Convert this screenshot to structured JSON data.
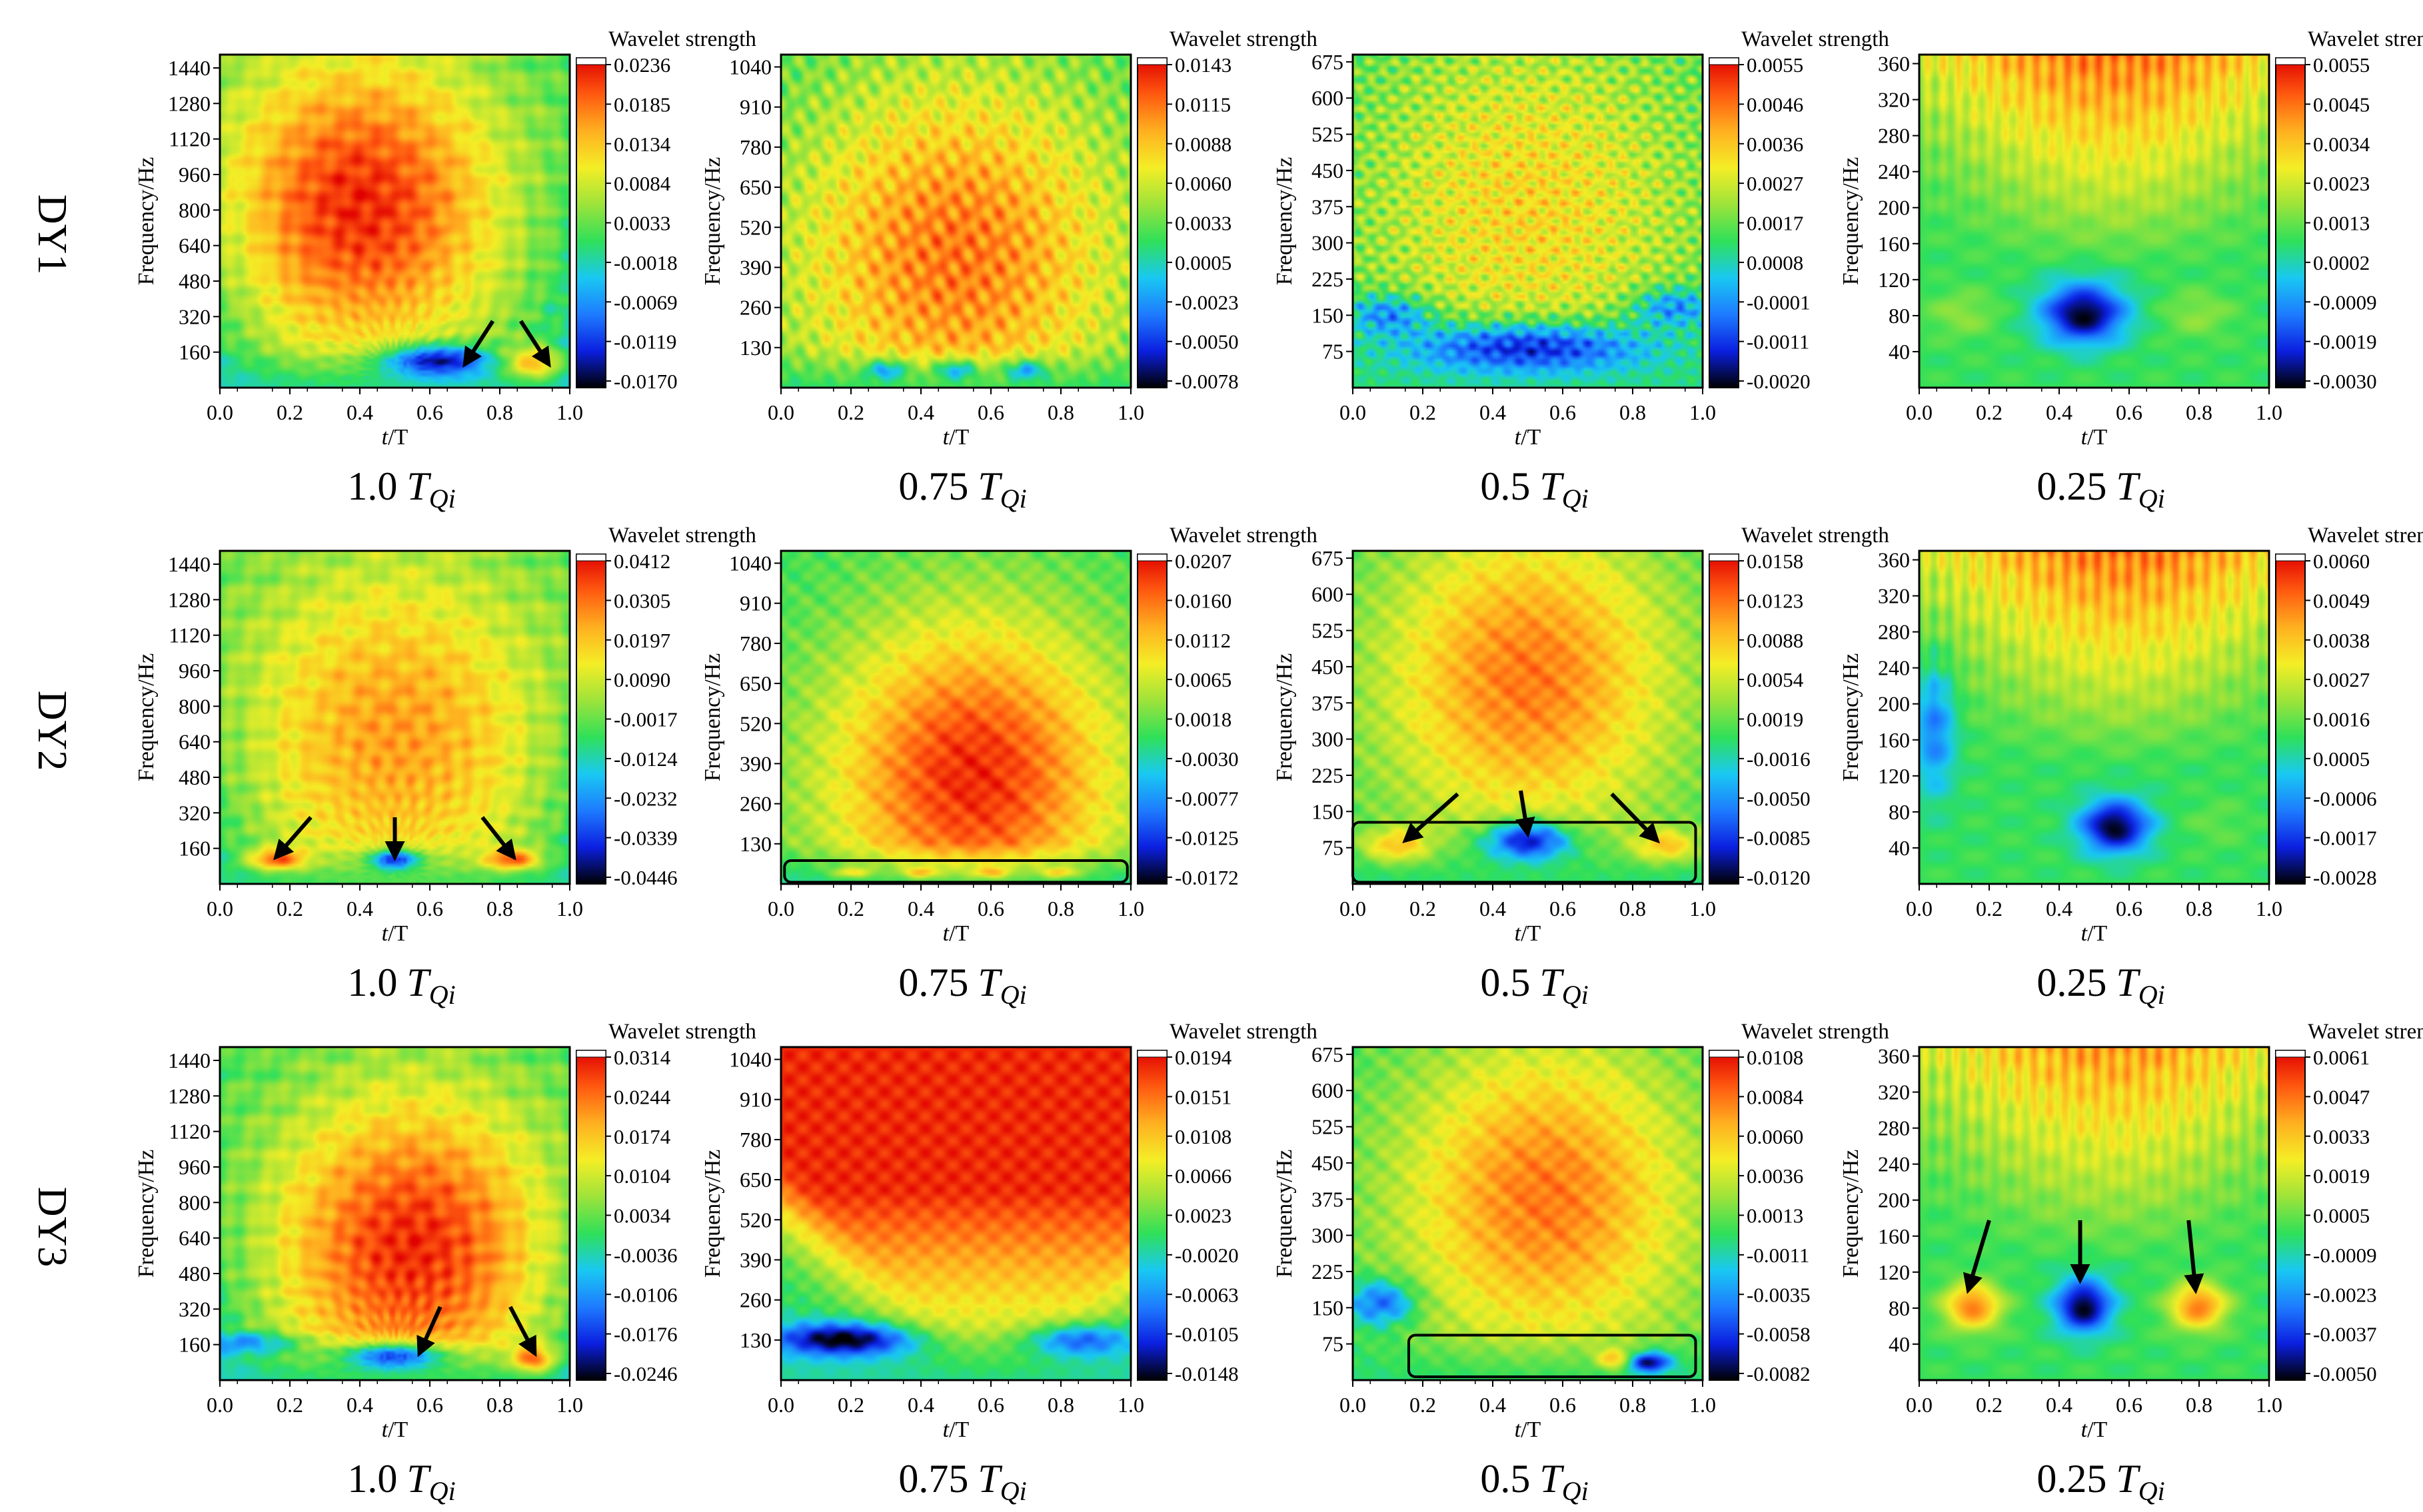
{
  "figure": {
    "row_labels": [
      "DY1",
      "DY2",
      "DY3"
    ],
    "column_labels": [
      "1.0",
      "0.75",
      "0.5",
      "0.25"
    ],
    "column_label_suffix": "T",
    "column_label_subscript": "Qi",
    "colorbar_title": "Wavelet strength",
    "xlabel_italic": "t",
    "xlabel_rest": "/T",
    "ylabel": "Frequency/Hz",
    "colors": {
      "colormap": [
        "#000000",
        "#0b1fe0",
        "#1e7bff",
        "#19c8f2",
        "#2fe05a",
        "#9ee33a",
        "#f4ee26",
        "#ffb020",
        "#ff5a10",
        "#e00000",
        "#ffffff"
      ]
    }
  },
  "chart_data": [
    {
      "row": "DY1",
      "col": "1.0",
      "type": "heatmap",
      "title": "1.0 TQi",
      "xlabel": "t/T",
      "ylabel": "Frequency/Hz",
      "colorbar_label": "Wavelet strength",
      "x_ticks": [
        "0.0",
        "0.2",
        "0.4",
        "0.6",
        "0.8",
        "1.0"
      ],
      "y_ticks": [
        "160",
        "320",
        "480",
        "640",
        "800",
        "960",
        "1120",
        "1280",
        "1440"
      ],
      "ylim": [
        0,
        1500
      ],
      "colorbar_ticks": [
        "0.0236",
        "0.0185",
        "0.0134",
        "0.0084",
        "0.0033",
        "-0.0018",
        "-0.0069",
        "-0.0119",
        "-0.0170"
      ],
      "pattern": {
        "family": "fan",
        "hot": [
          0.4,
          0.55,
          0.3,
          0.95
        ],
        "low": [
          [
            0.62,
            0.08,
            0.15,
            0.05,
            -1
          ],
          [
            0.9,
            0.07,
            0.08,
            0.05,
            0.8
          ]
        ],
        "lowLevel": 0.35,
        "lowBand": 0.13
      },
      "arrows": [
        {
          "from": [
            0.78,
            0.2
          ],
          "to": [
            0.7,
            0.07
          ]
        },
        {
          "from": [
            0.86,
            0.2
          ],
          "to": [
            0.94,
            0.07
          ]
        }
      ],
      "boxes": []
    },
    {
      "row": "DY1",
      "col": "0.75",
      "type": "heatmap",
      "title": "0.75 TQi",
      "xlabel": "t/T",
      "ylabel": "Frequency/Hz",
      "colorbar_label": "Wavelet strength",
      "x_ticks": [
        "0.0",
        "0.2",
        "0.4",
        "0.6",
        "0.8",
        "1.0"
      ],
      "y_ticks": [
        "130",
        "260",
        "390",
        "520",
        "650",
        "780",
        "910",
        "1040"
      ],
      "ylim": [
        0,
        1080
      ],
      "colorbar_ticks": [
        "0.0143",
        "0.0115",
        "0.0088",
        "0.0060",
        "0.0033",
        "0.0005",
        "-0.0023",
        "-0.0050",
        "-0.0078"
      ],
      "pattern": {
        "family": "cells",
        "hot": [
          0.5,
          0.4,
          0.35,
          0.85
        ],
        "low": [
          [
            0.3,
            0.05,
            0.06,
            0.03,
            -0.6
          ],
          [
            0.5,
            0.05,
            0.06,
            0.03,
            -0.6
          ],
          [
            0.7,
            0.05,
            0.06,
            0.03,
            -0.6
          ]
        ],
        "lowLevel": 0.38,
        "lowBand": 0.12
      },
      "arrows": [],
      "boxes": []
    },
    {
      "row": "DY1",
      "col": "0.5",
      "type": "heatmap",
      "title": "0.5 TQi",
      "xlabel": "t/T",
      "ylabel": "Frequency/Hz",
      "colorbar_label": "Wavelet strength",
      "x_ticks": [
        "0.0",
        "0.2",
        "0.4",
        "0.6",
        "0.8",
        "1.0"
      ],
      "y_ticks": [
        "75",
        "150",
        "225",
        "300",
        "375",
        "450",
        "525",
        "600",
        "675"
      ],
      "ylim": [
        0,
        690
      ],
      "colorbar_ticks": [
        "0.0055",
        "0.0046",
        "0.0036",
        "0.0027",
        "0.0017",
        "0.0008",
        "-0.0001",
        "-0.0011",
        "-0.0020"
      ],
      "pattern": {
        "family": "noisy",
        "hot": [
          0.5,
          0.55,
          0.35,
          0.7
        ],
        "low": [
          [
            0.5,
            0.12,
            0.35,
            0.08,
            -0.9
          ],
          [
            0.1,
            0.22,
            0.12,
            0.06,
            -0.6
          ],
          [
            0.92,
            0.24,
            0.12,
            0.06,
            -0.6
          ]
        ],
        "lowLevel": 0.4,
        "lowBand": 0.2
      },
      "arrows": [],
      "boxes": []
    },
    {
      "row": "DY1",
      "col": "0.25",
      "type": "heatmap",
      "title": "0.25 TQi",
      "xlabel": "t/T",
      "ylabel": "Frequency/Hz",
      "colorbar_label": "Wavelet strength",
      "x_ticks": [
        "0.0",
        "0.2",
        "0.4",
        "0.6",
        "0.8",
        "1.0"
      ],
      "y_ticks": [
        "40",
        "80",
        "120",
        "160",
        "200",
        "240",
        "280",
        "320",
        "360"
      ],
      "ylim": [
        0,
        370
      ],
      "colorbar_ticks": [
        "0.0055",
        "0.0045",
        "0.0034",
        "0.0023",
        "0.0013",
        "0.0002",
        "-0.0009",
        "-0.0019",
        "-0.0030"
      ],
      "pattern": {
        "family": "top",
        "hot": [
          0.55,
          0.72,
          0.3,
          0.5
        ],
        "low": [
          [
            0.47,
            0.22,
            0.12,
            0.09,
            -1
          ],
          [
            0.12,
            0.22,
            0.1,
            0.07,
            0.2
          ],
          [
            0.8,
            0.22,
            0.1,
            0.07,
            0.2
          ]
        ],
        "lowLevel": 0.5,
        "lowBand": 0.0
      },
      "arrows": [],
      "boxes": []
    },
    {
      "row": "DY2",
      "col": "1.0",
      "type": "heatmap",
      "title": "1.0 TQi",
      "xlabel": "t/T",
      "ylabel": "Frequency/Hz",
      "colorbar_label": "Wavelet strength",
      "x_ticks": [
        "0.0",
        "0.2",
        "0.4",
        "0.6",
        "0.8",
        "1.0"
      ],
      "y_ticks": [
        "160",
        "320",
        "480",
        "640",
        "800",
        "960",
        "1120",
        "1280",
        "1440"
      ],
      "ylim": [
        0,
        1500
      ],
      "colorbar_ticks": [
        "0.0412",
        "0.0305",
        "0.0197",
        "0.0090",
        "-0.0017",
        "-0.0124",
        "-0.0232",
        "-0.0339",
        "-0.0446"
      ],
      "pattern": {
        "family": "fan",
        "hot": [
          0.5,
          0.45,
          0.35,
          0.8
        ],
        "low": [
          [
            0.16,
            0.07,
            0.08,
            0.03,
            0.9
          ],
          [
            0.5,
            0.07,
            0.07,
            0.03,
            -1
          ],
          [
            0.84,
            0.07,
            0.08,
            0.03,
            0.9
          ]
        ],
        "lowLevel": 0.4,
        "lowBand": 0.13
      },
      "arrows": [
        {
          "from": [
            0.26,
            0.2
          ],
          "to": [
            0.16,
            0.08
          ]
        },
        {
          "from": [
            0.5,
            0.2
          ],
          "to": [
            0.5,
            0.08
          ]
        },
        {
          "from": [
            0.75,
            0.2
          ],
          "to": [
            0.84,
            0.08
          ]
        }
      ],
      "boxes": []
    },
    {
      "row": "DY2",
      "col": "0.75",
      "type": "heatmap",
      "title": "0.75 TQi",
      "xlabel": "t/T",
      "ylabel": "Frequency/Hz",
      "colorbar_label": "Wavelet strength",
      "x_ticks": [
        "0.0",
        "0.2",
        "0.4",
        "0.6",
        "0.8",
        "1.0"
      ],
      "y_ticks": [
        "130",
        "260",
        "390",
        "520",
        "650",
        "780",
        "910",
        "1040"
      ],
      "ylim": [
        0,
        1080
      ],
      "colorbar_ticks": [
        "0.0207",
        "0.0160",
        "0.0112",
        "0.0065",
        "0.0018",
        "-0.0030",
        "-0.0077",
        "-0.0125",
        "-0.0172"
      ],
      "pattern": {
        "family": "bowl",
        "hot": [
          0.55,
          0.32,
          0.3,
          0.95
        ],
        "low": [
          [
            0.2,
            0.03,
            0.05,
            0.015,
            0.5
          ],
          [
            0.4,
            0.03,
            0.05,
            0.015,
            0.5
          ],
          [
            0.6,
            0.03,
            0.05,
            0.015,
            0.5
          ],
          [
            0.8,
            0.03,
            0.05,
            0.015,
            0.5
          ]
        ],
        "lowLevel": 0.35,
        "lowBand": 0.12
      },
      "arrows": [],
      "boxes": [
        {
          "x0": 0.01,
          "y0": 0.005,
          "x1": 0.99,
          "y1": 0.07
        }
      ]
    },
    {
      "row": "DY2",
      "col": "0.5",
      "type": "heatmap",
      "title": "0.5 TQi",
      "xlabel": "t/T",
      "ylabel": "Frequency/Hz",
      "colorbar_label": "Wavelet strength",
      "x_ticks": [
        "0.0",
        "0.2",
        "0.4",
        "0.6",
        "0.8",
        "1.0"
      ],
      "y_ticks": [
        "75",
        "150",
        "225",
        "300",
        "375",
        "450",
        "525",
        "600",
        "675"
      ],
      "ylim": [
        0,
        690
      ],
      "colorbar_ticks": [
        "0.0158",
        "0.0123",
        "0.0088",
        "0.0054",
        "0.0019",
        "-0.0016",
        "-0.0050",
        "-0.0085",
        "-0.0120"
      ],
      "pattern": {
        "family": "bowl",
        "hot": [
          0.5,
          0.62,
          0.3,
          0.85
        ],
        "low": [
          [
            0.5,
            0.13,
            0.12,
            0.06,
            -1
          ],
          [
            0.12,
            0.11,
            0.1,
            0.05,
            0.6
          ],
          [
            0.9,
            0.11,
            0.1,
            0.05,
            0.6
          ]
        ],
        "lowLevel": 0.4,
        "lowBand": 0.18
      },
      "arrows": [
        {
          "from": [
            0.3,
            0.27
          ],
          "to": [
            0.15,
            0.13
          ]
        },
        {
          "from": [
            0.48,
            0.28
          ],
          "to": [
            0.5,
            0.15
          ]
        },
        {
          "from": [
            0.74,
            0.27
          ],
          "to": [
            0.87,
            0.13
          ]
        }
      ],
      "boxes": [
        {
          "x0": 0.0,
          "y0": 0.005,
          "x1": 0.98,
          "y1": 0.185
        }
      ]
    },
    {
      "row": "DY2",
      "col": "0.25",
      "type": "heatmap",
      "title": "0.25 TQi",
      "xlabel": "t/T",
      "ylabel": "Frequency/Hz",
      "colorbar_label": "Wavelet strength",
      "x_ticks": [
        "0.0",
        "0.2",
        "0.4",
        "0.6",
        "0.8",
        "1.0"
      ],
      "y_ticks": [
        "40",
        "80",
        "120",
        "160",
        "200",
        "240",
        "280",
        "320",
        "360"
      ],
      "ylim": [
        0,
        370
      ],
      "colorbar_ticks": [
        "0.0060",
        "0.0049",
        "0.0038",
        "0.0027",
        "0.0016",
        "0.0005",
        "-0.0006",
        "-0.0017",
        "-0.0028"
      ],
      "pattern": {
        "family": "top",
        "hot": [
          0.58,
          0.72,
          0.3,
          0.5
        ],
        "low": [
          [
            0.56,
            0.17,
            0.1,
            0.08,
            -1
          ],
          [
            0.04,
            0.47,
            0.06,
            0.2,
            -0.5
          ],
          [
            0.85,
            0.18,
            0.09,
            0.07,
            0.1
          ]
        ],
        "lowLevel": 0.5,
        "lowBand": 0.0
      },
      "arrows": [],
      "boxes": []
    },
    {
      "row": "DY3",
      "col": "1.0",
      "type": "heatmap",
      "title": "1.0 TQi",
      "xlabel": "t/T",
      "ylabel": "Frequency/Hz",
      "colorbar_label": "Wavelet strength",
      "x_ticks": [
        "0.0",
        "0.2",
        "0.4",
        "0.6",
        "0.8",
        "1.0"
      ],
      "y_ticks": [
        "160",
        "320",
        "480",
        "640",
        "800",
        "960",
        "1120",
        "1280",
        "1440"
      ],
      "ylim": [
        0,
        1500
      ],
      "colorbar_ticks": [
        "0.0314",
        "0.0244",
        "0.0174",
        "0.0104",
        "0.0034",
        "-0.0036",
        "-0.0106",
        "-0.0176",
        "-0.0246"
      ],
      "pattern": {
        "family": "fan",
        "hot": [
          0.55,
          0.4,
          0.3,
          0.95
        ],
        "low": [
          [
            0.5,
            0.07,
            0.14,
            0.04,
            -1
          ],
          [
            0.9,
            0.06,
            0.06,
            0.04,
            0.9
          ],
          [
            0.1,
            0.11,
            0.15,
            0.03,
            -0.5
          ]
        ],
        "lowLevel": 0.35,
        "lowBand": 0.13
      },
      "arrows": [
        {
          "from": [
            0.63,
            0.22
          ],
          "to": [
            0.57,
            0.08
          ]
        },
        {
          "from": [
            0.83,
            0.22
          ],
          "to": [
            0.9,
            0.08
          ]
        }
      ],
      "boxes": []
    },
    {
      "row": "DY3",
      "col": "0.75",
      "type": "heatmap",
      "title": "0.75 TQi",
      "xlabel": "t/T",
      "ylabel": "Frequency/Hz",
      "colorbar_label": "Wavelet strength",
      "x_ticks": [
        "0.0",
        "0.2",
        "0.4",
        "0.6",
        "0.8",
        "1.0"
      ],
      "y_ticks": [
        "130",
        "260",
        "390",
        "520",
        "650",
        "780",
        "910",
        "1040"
      ],
      "ylim": [
        0,
        1080
      ],
      "colorbar_ticks": [
        "0.0194",
        "0.0151",
        "0.0108",
        "0.0066",
        "0.0023",
        "-0.0020",
        "-0.0063",
        "-0.0105",
        "-0.0148"
      ],
      "pattern": {
        "family": "vshape",
        "hot": [
          0.62,
          0.3,
          0.25,
          0.95
        ],
        "low": [
          [
            0.18,
            0.12,
            0.2,
            0.05,
            -1
          ],
          [
            0.85,
            0.12,
            0.15,
            0.05,
            -0.7
          ]
        ],
        "lowLevel": 0.38,
        "lowBand": 0.15
      },
      "arrows": [],
      "boxes": []
    },
    {
      "row": "DY3",
      "col": "0.5",
      "type": "heatmap",
      "title": "0.5 TQi",
      "xlabel": "t/T",
      "ylabel": "Frequency/Hz",
      "colorbar_label": "Wavelet strength",
      "x_ticks": [
        "0.0",
        "0.2",
        "0.4",
        "0.6",
        "0.8",
        "1.0"
      ],
      "y_ticks": [
        "75",
        "150",
        "225",
        "300",
        "375",
        "450",
        "525",
        "600",
        "675"
      ],
      "ylim": [
        0,
        690
      ],
      "colorbar_ticks": [
        "0.0108",
        "0.0084",
        "0.0060",
        "0.0036",
        "0.0013",
        "-0.0011",
        "-0.0035",
        "-0.0058",
        "-0.0082"
      ],
      "pattern": {
        "family": "bowl",
        "hot": [
          0.55,
          0.55,
          0.3,
          0.85
        ],
        "low": [
          [
            0.08,
            0.23,
            0.1,
            0.07,
            -0.7
          ],
          [
            0.85,
            0.05,
            0.06,
            0.03,
            -1
          ],
          [
            0.75,
            0.06,
            0.05,
            0.03,
            0.6
          ]
        ],
        "lowLevel": 0.4,
        "lowBand": 0.15
      },
      "arrows": [],
      "boxes": [
        {
          "x0": 0.16,
          "y0": 0.01,
          "x1": 0.98,
          "y1": 0.135
        }
      ]
    },
    {
      "row": "DY3",
      "col": "0.25",
      "type": "heatmap",
      "title": "0.25 TQi",
      "xlabel": "t/T",
      "ylabel": "Frequency/Hz",
      "colorbar_label": "Wavelet strength",
      "x_ticks": [
        "0.0",
        "0.2",
        "0.4",
        "0.6",
        "0.8",
        "1.0"
      ],
      "y_ticks": [
        "40",
        "80",
        "120",
        "160",
        "200",
        "240",
        "280",
        "320",
        "360"
      ],
      "ylim": [
        0,
        370
      ],
      "colorbar_ticks": [
        "0.0061",
        "0.0047",
        "0.0033",
        "0.0019",
        "0.0005",
        "-0.0009",
        "-0.0023",
        "-0.0037",
        "-0.0050"
      ],
      "pattern": {
        "family": "top",
        "hot": [
          0.55,
          0.78,
          0.3,
          0.45
        ],
        "low": [
          [
            0.47,
            0.22,
            0.08,
            0.08,
            -1
          ],
          [
            0.15,
            0.22,
            0.08,
            0.07,
            0.9
          ],
          [
            0.8,
            0.22,
            0.08,
            0.07,
            0.9
          ]
        ],
        "lowLevel": 0.5,
        "lowBand": 0.0
      },
      "arrows": [
        {
          "from": [
            0.2,
            0.48
          ],
          "to": [
            0.14,
            0.27
          ]
        },
        {
          "from": [
            0.46,
            0.48
          ],
          "to": [
            0.46,
            0.3
          ]
        },
        {
          "from": [
            0.77,
            0.48
          ],
          "to": [
            0.79,
            0.27
          ]
        }
      ],
      "boxes": []
    }
  ]
}
